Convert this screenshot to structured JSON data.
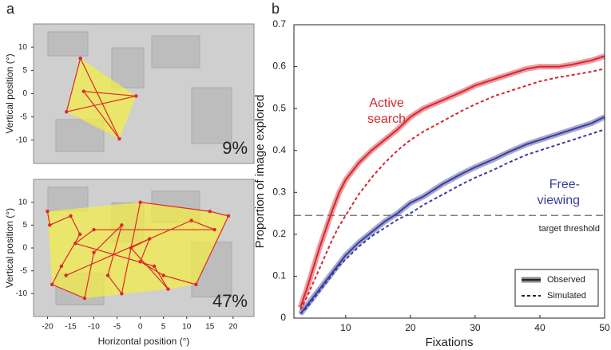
{
  "chart_data": [
    {
      "type": "scanpath",
      "panel": "a",
      "xlabel": "Horizontal position (°)",
      "ylabel": "Vertical position (°)",
      "xlim": [
        -23,
        24.5
      ],
      "xticks": [
        -20,
        -15,
        -10,
        -5,
        0,
        5,
        10,
        15,
        20
      ],
      "path_color": "#e0262b",
      "hull_color": "#f3f040",
      "subplots": [
        {
          "ylim": [
            -15,
            15
          ],
          "yticks": [
            -10,
            -5,
            0,
            5,
            10
          ],
          "coverage": {
            "value": 9,
            "label": "9%"
          },
          "x": [
            -12.9,
            -4.5,
            -12.2,
            -0.9,
            -15.9,
            -12.9
          ],
          "y": [
            7.6,
            -9.7,
            0.5,
            -0.5,
            -3.9,
            7.6
          ]
        },
        {
          "ylim": [
            -15,
            15
          ],
          "yticks": [
            -10,
            -5,
            0,
            5,
            10
          ],
          "coverage": {
            "value": 47,
            "label": "47%"
          },
          "x": [
            -20,
            -19.5,
            -15,
            -13,
            -17,
            -19,
            -12,
            -10,
            -4,
            -7,
            -4,
            0,
            15,
            19,
            12,
            5,
            0,
            2,
            -2,
            6,
            3,
            -14,
            -10,
            16,
            11,
            -16
          ],
          "y": [
            8,
            5,
            7,
            3,
            -4,
            -8,
            -11,
            -1,
            5,
            -6,
            -10,
            10,
            8,
            7,
            -8,
            -6,
            -3,
            2,
            0,
            -9,
            -4,
            1,
            4,
            4,
            6,
            -6
          ]
        }
      ]
    },
    {
      "type": "line",
      "panel": "b",
      "xlabel": "Fixations",
      "ylabel": "Proportion of  image explored",
      "xlim": [
        2,
        50
      ],
      "xticks": [
        10,
        20,
        30,
        40,
        50
      ],
      "ylim": [
        0,
        0.7
      ],
      "yticks": [
        0,
        0.1,
        0.2,
        0.3,
        0.4,
        0.5,
        0.6,
        0.7
      ],
      "x": [
        3,
        4,
        5,
        6,
        7,
        8,
        9,
        10,
        12,
        14,
        16,
        18,
        20,
        22,
        25,
        28,
        30,
        33,
        35,
        38,
        40,
        43,
        45,
        48,
        50
      ],
      "series": [
        {
          "color": "#d6262e",
          "style": "observed",
          "values": [
            0.025,
            0.07,
            0.12,
            0.17,
            0.215,
            0.26,
            0.3,
            0.33,
            0.37,
            0.4,
            0.425,
            0.45,
            0.48,
            0.5,
            0.52,
            0.54,
            0.555,
            0.57,
            0.58,
            0.595,
            0.6,
            0.6,
            0.605,
            0.615,
            0.625
          ]
        },
        {
          "color": "#d6262e",
          "style": "simulated",
          "values": [
            0.02,
            0.05,
            0.085,
            0.12,
            0.155,
            0.19,
            0.22,
            0.245,
            0.295,
            0.335,
            0.37,
            0.4,
            0.425,
            0.445,
            0.47,
            0.495,
            0.51,
            0.53,
            0.54,
            0.555,
            0.565,
            0.575,
            0.58,
            0.588,
            0.595
          ]
        },
        {
          "color": "#3a3d9a",
          "style": "observed",
          "values": [
            0.01,
            0.03,
            0.05,
            0.07,
            0.09,
            0.11,
            0.13,
            0.15,
            0.18,
            0.205,
            0.23,
            0.25,
            0.275,
            0.29,
            0.32,
            0.345,
            0.36,
            0.38,
            0.395,
            0.415,
            0.425,
            0.44,
            0.45,
            0.465,
            0.48
          ]
        },
        {
          "color": "#3a3d9a",
          "style": "simulated",
          "values": [
            0.01,
            0.025,
            0.045,
            0.065,
            0.085,
            0.105,
            0.125,
            0.14,
            0.17,
            0.195,
            0.215,
            0.235,
            0.25,
            0.27,
            0.295,
            0.32,
            0.335,
            0.355,
            0.37,
            0.39,
            0.4,
            0.415,
            0.425,
            0.44,
            0.45
          ]
        }
      ],
      "threshold": {
        "value": 0.245,
        "label": "target threshold"
      },
      "annotations": [
        {
          "lines": [
            "Active",
            "search"
          ],
          "color": "#d6262e"
        },
        {
          "lines": [
            "Free-",
            "viewing"
          ],
          "color": "#3a3d9a"
        }
      ],
      "legend": {
        "position": "lower right",
        "entries": [
          {
            "label": "Observed",
            "style": "observed"
          },
          {
            "label": "Simulated",
            "style": "simulated"
          }
        ]
      }
    }
  ]
}
